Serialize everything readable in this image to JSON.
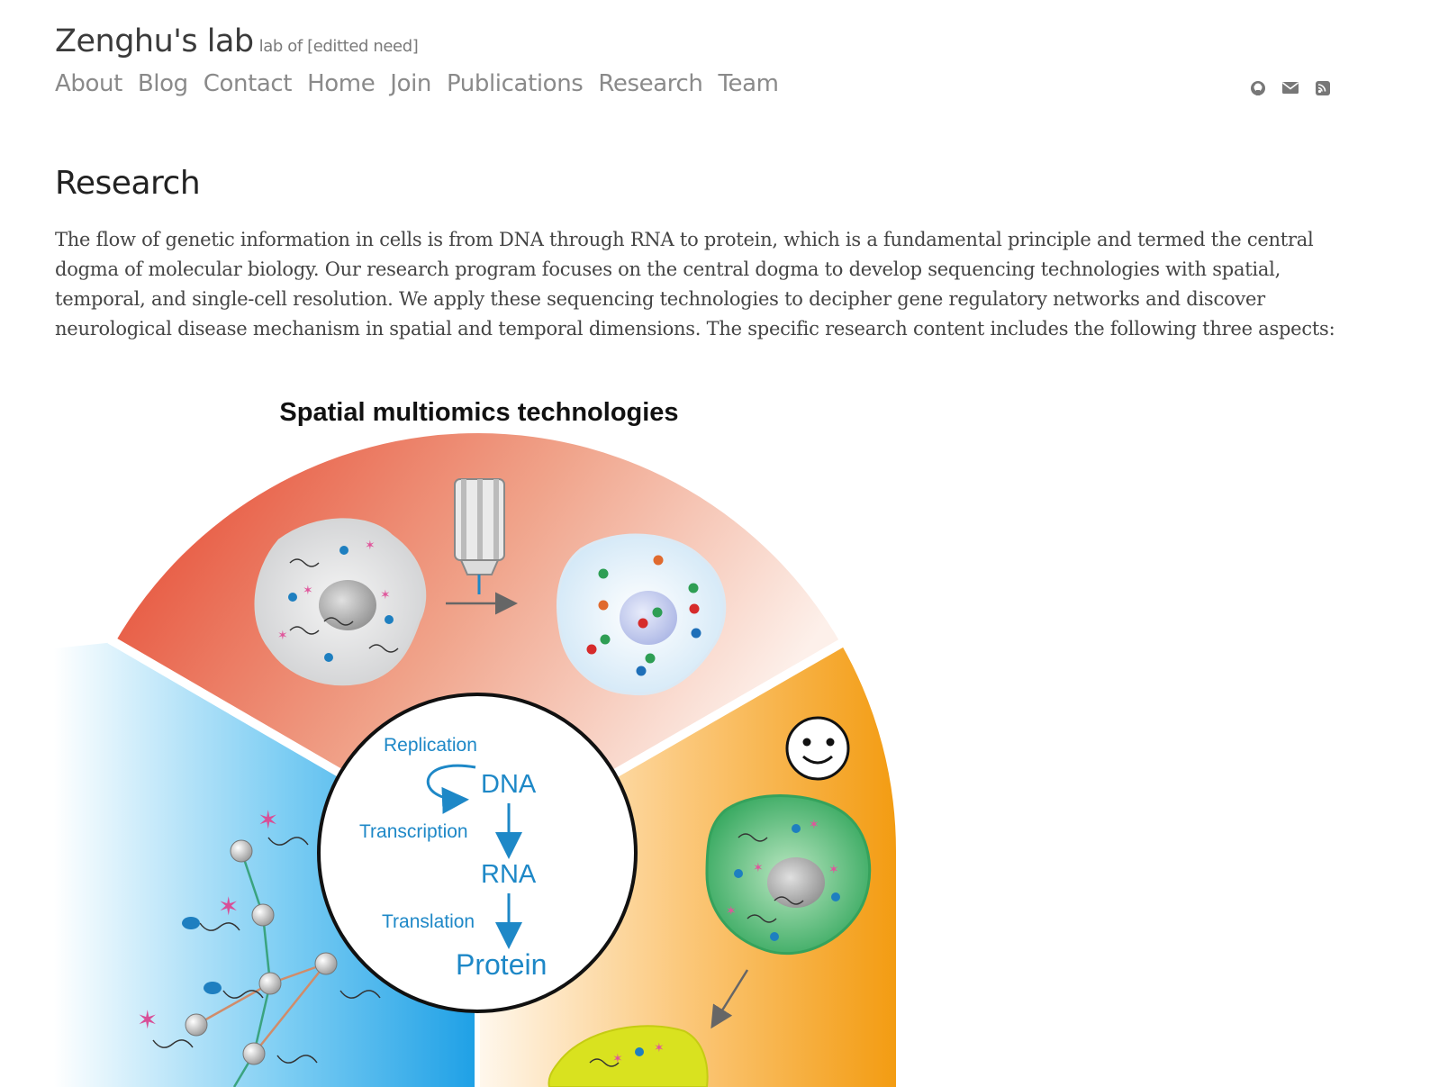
{
  "header": {
    "site_name": "Zenghu's lab",
    "tagline": "lab of [editted need]"
  },
  "nav": {
    "items": [
      "About",
      "Blog",
      "Contact",
      "Home",
      "Join",
      "Publications",
      "Research",
      "Team"
    ]
  },
  "social": {
    "icons": [
      "github-icon",
      "envelope-icon",
      "rss-icon"
    ]
  },
  "page": {
    "title": "Research",
    "intro": "The flow of genetic information in cells is from DNA through RNA to protein, which is a fundamental principle and termed the central dogma of molecular biology. Our research program focuses on the central dogma to develop sequencing technologies with spatial, temporal, and single-cell resolution. We apply these sequencing technologies to decipher gene regulatory networks and discover neurological disease mechanism in spatial and temporal dimensions. The specific research content includes the following three aspects:"
  },
  "figure": {
    "title": "Spatial multiomics technologies",
    "replication": "Replication",
    "dna": "DNA",
    "transcription": "Transcription",
    "rna": "RNA",
    "translation": "Translation",
    "protein": "Protein",
    "colors": {
      "red_sector": "#e5432c",
      "orange_sector": "#f39c12",
      "blue_sector": "#1ea0e6",
      "dogma_text": "#1e88c7"
    }
  }
}
